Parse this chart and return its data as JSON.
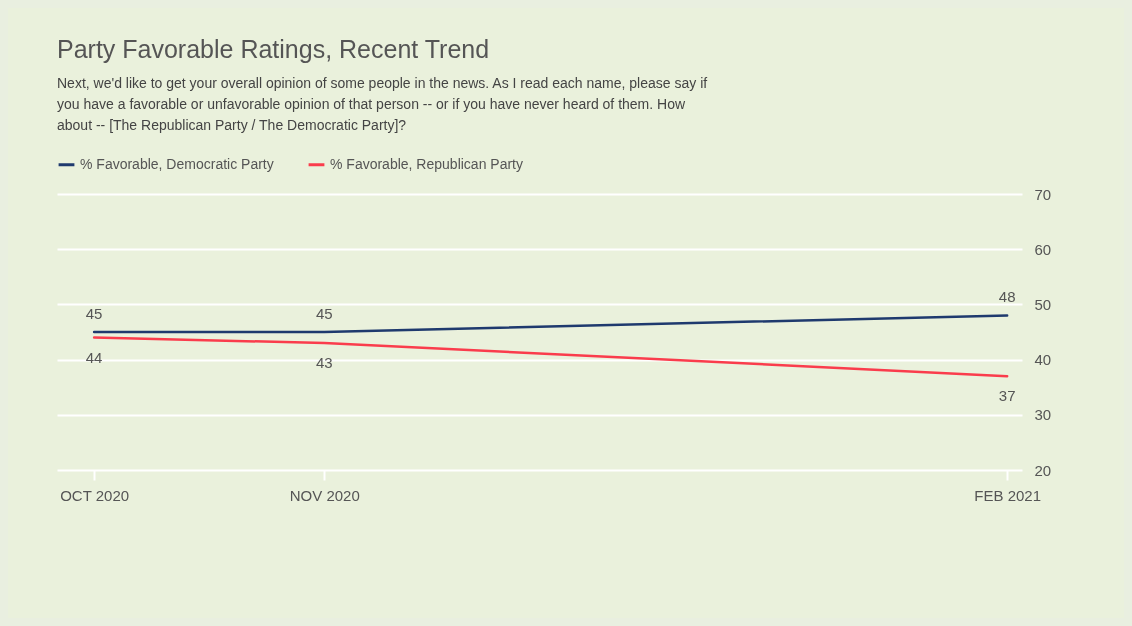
{
  "chart_data": {
    "type": "line",
    "title": "Party Favorable Ratings, Recent Trend",
    "subtitle": "Next, we'd like to get your overall opinion of some people in the news. As I read each name, please say if you have a favorable or unfavorable opinion of that person -- or if you have never heard of them. How about -- [The Republican Party / The Democratic Party]?",
    "x": [
      "2020-10",
      "2020-11",
      "2021-02"
    ],
    "series": [
      {
        "name": "% Favorable, Democratic Party",
        "color": "#1f3a6e",
        "values": [
          45,
          45,
          48
        ]
      },
      {
        "name": "% Favorable, Republican Party",
        "color": "#fa3c4c",
        "values": [
          44,
          43,
          37
        ]
      }
    ],
    "xlim": [
      "2020-09-26",
      "2021-02-03"
    ],
    "xticks": [
      {
        "value": "2020-10",
        "label": "OCT 2020"
      },
      {
        "value": "2020-11",
        "label": "NOV 2020"
      },
      {
        "value": "2021-02",
        "label": "FEB 2021"
      }
    ],
    "ylim": [
      20,
      70
    ],
    "yticks": [
      20,
      30,
      40,
      50,
      60,
      70
    ],
    "grid": "y",
    "legend": "top left",
    "data_labels": true,
    "marker": "none",
    "line_style": "solid"
  }
}
